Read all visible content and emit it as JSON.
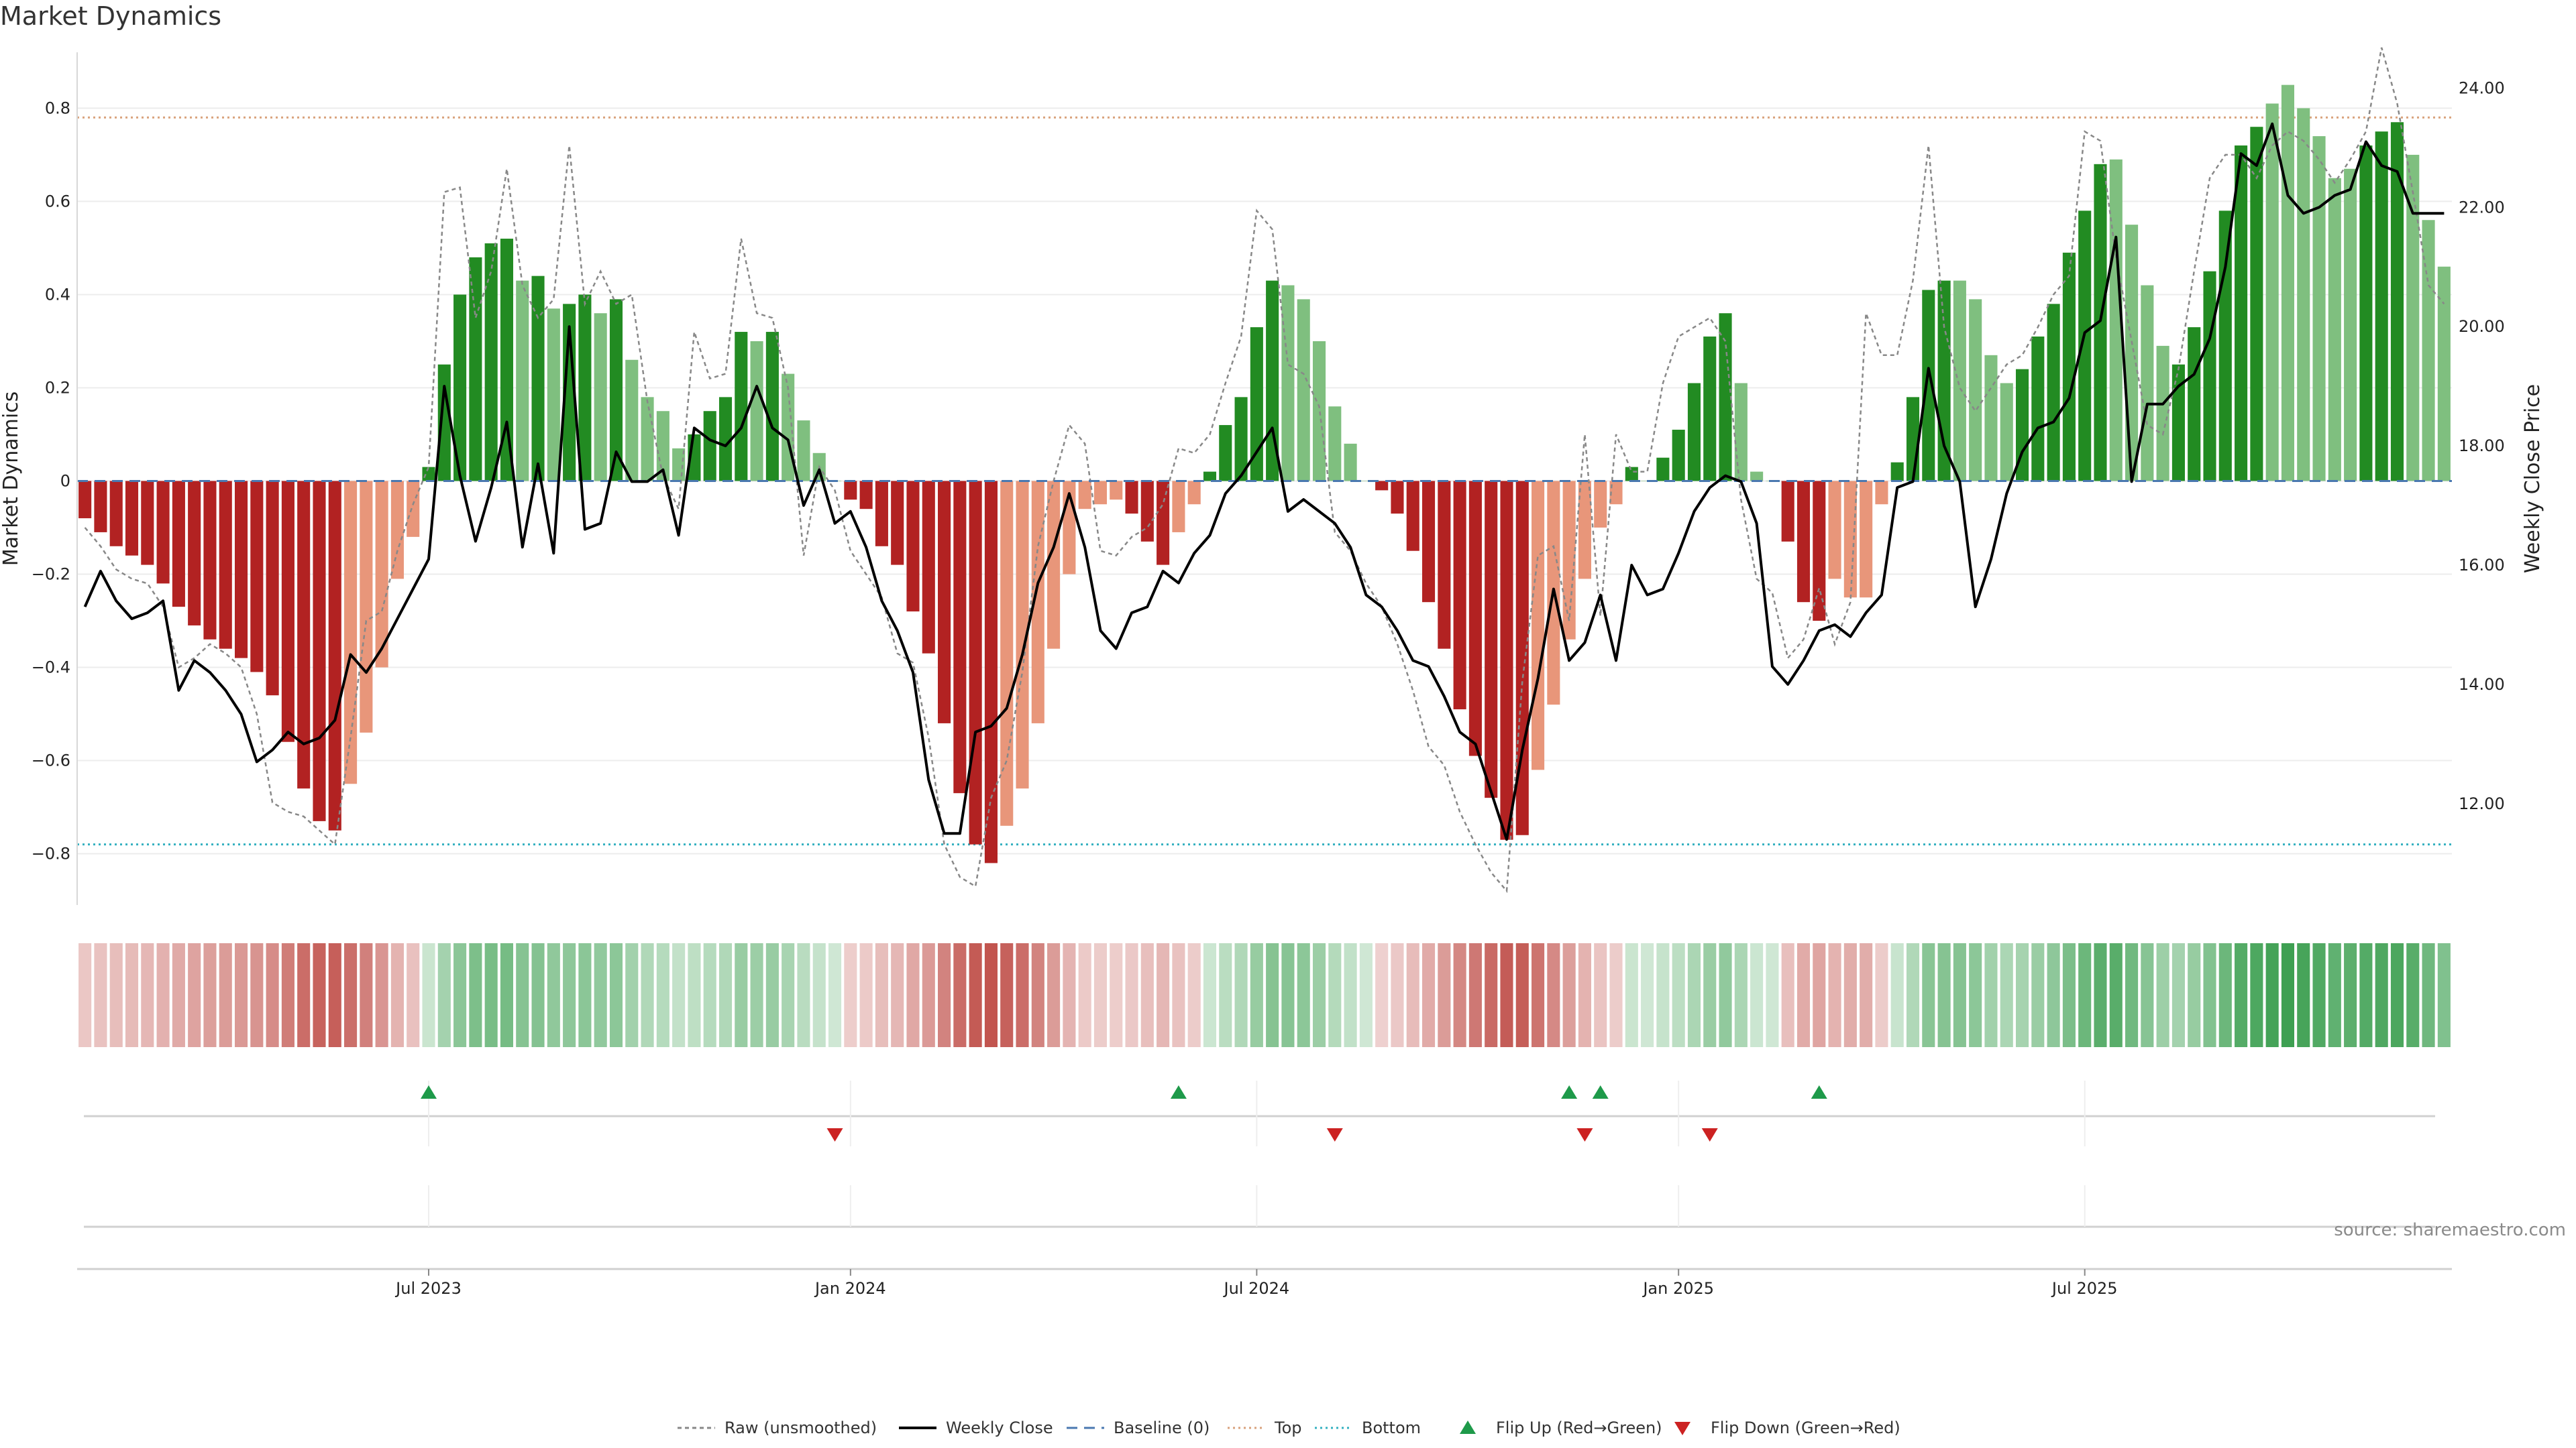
{
  "title": "Market Dynamics",
  "source": "source: sharemaestro.com",
  "colors": {
    "strong_green": "#228b22",
    "weak_green": "#7fbf7f",
    "strong_red": "#b22222",
    "weak_red": "#e8967a",
    "price_line": "#000000",
    "raw_line": "#888888",
    "baseline": "#4a78b0",
    "top": "#d9a27c",
    "bottom": "#33b0c0",
    "flip_up": "#1e9a4a",
    "flip_down": "#cc2222"
  },
  "chart_data": {
    "type": "bar",
    "title": "Market Dynamics",
    "ylabel_left": "Market Dynamics",
    "ylabel_right": "Weekly Close Price",
    "ylim_left": [
      -0.91,
      0.92
    ],
    "ylim_right": [
      10.3,
      24.6
    ],
    "yticks_left": [
      "0.8",
      "0.6",
      "0.4",
      "0.2",
      "0",
      "−0.2",
      "−0.4",
      "−0.6",
      "−0.8"
    ],
    "yticks_left_values": [
      0.8,
      0.6,
      0.4,
      0.2,
      0,
      -0.2,
      -0.4,
      -0.6,
      -0.8
    ],
    "yticks_right": [
      "24.00",
      "22.00",
      "20.00",
      "18.00",
      "16.00",
      "14.00",
      "12.00"
    ],
    "yticks_right_values": [
      24,
      22,
      20,
      18,
      16,
      14,
      12
    ],
    "x_tick_labels": [
      "Jul 2023",
      "Jan 2024",
      "Jul 2024",
      "Jan 2025",
      "Jul 2025"
    ],
    "x_tick_week_index": [
      22,
      49,
      75,
      102,
      128
    ],
    "top_level": 0.78,
    "bottom_level": -0.78,
    "baseline": 0,
    "legend_position": "bottom-center",
    "legend": [
      "Raw (unsmoothed)",
      "Weekly Close",
      "Baseline (0)",
      "Top",
      "Bottom",
      "Flip Up (Red→Green)",
      "Flip Down (Green→Red)"
    ],
    "dynamics": [
      -0.08,
      -0.11,
      -0.14,
      -0.16,
      -0.18,
      -0.22,
      -0.27,
      -0.31,
      -0.34,
      -0.36,
      -0.38,
      -0.41,
      -0.46,
      -0.56,
      -0.66,
      -0.73,
      -0.75,
      -0.65,
      -0.54,
      -0.4,
      -0.21,
      -0.12,
      0.03,
      0.25,
      0.4,
      0.48,
      0.51,
      0.52,
      0.43,
      0.44,
      0.37,
      0.38,
      0.4,
      0.36,
      0.39,
      0.26,
      0.18,
      0.15,
      0.07,
      0.1,
      0.15,
      0.18,
      0.32,
      0.3,
      0.32,
      0.23,
      0.13,
      0.06,
      0.0,
      -0.04,
      -0.06,
      -0.14,
      -0.18,
      -0.28,
      -0.37,
      -0.52,
      -0.67,
      -0.78,
      -0.82,
      -0.74,
      -0.66,
      -0.52,
      -0.36,
      -0.2,
      -0.06,
      -0.05,
      -0.04,
      -0.07,
      -0.13,
      -0.18,
      -0.11,
      -0.05,
      0.02,
      0.12,
      0.18,
      0.33,
      0.43,
      0.42,
      0.39,
      0.3,
      0.16,
      0.08,
      0.0,
      -0.02,
      -0.07,
      -0.15,
      -0.26,
      -0.36,
      -0.49,
      -0.59,
      -0.68,
      -0.77,
      -0.76,
      -0.62,
      -0.48,
      -0.34,
      -0.21,
      -0.1,
      -0.05,
      0.03,
      0.0,
      0.05,
      0.11,
      0.21,
      0.31,
      0.36,
      0.21,
      0.02,
      0.0,
      -0.13,
      -0.26,
      -0.3,
      -0.21,
      -0.25,
      -0.25,
      -0.05,
      0.04,
      0.18,
      0.41,
      0.43,
      0.43,
      0.39,
      0.27,
      0.21,
      0.24,
      0.31,
      0.38,
      0.49,
      0.58,
      0.68,
      0.69,
      0.55,
      0.42,
      0.29,
      0.25,
      0.33,
      0.45,
      0.58,
      0.72,
      0.76,
      0.81,
      0.85,
      0.8,
      0.74,
      0.65,
      0.67,
      0.72,
      0.75,
      0.77,
      0.7,
      0.56,
      0.46
    ],
    "bar_strength": [
      "s",
      "s",
      "s",
      "s",
      "s",
      "s",
      "s",
      "s",
      "s",
      "s",
      "s",
      "s",
      "s",
      "s",
      "s",
      "s",
      "s",
      "w",
      "w",
      "w",
      "w",
      "w",
      "s",
      "s",
      "s",
      "s",
      "s",
      "s",
      "w",
      "s",
      "w",
      "s",
      "s",
      "w",
      "s",
      "w",
      "w",
      "w",
      "w",
      "s",
      "s",
      "s",
      "s",
      "w",
      "s",
      "w",
      "w",
      "w",
      "w",
      "s",
      "s",
      "s",
      "s",
      "s",
      "s",
      "s",
      "s",
      "s",
      "s",
      "w",
      "w",
      "w",
      "w",
      "w",
      "w",
      "w",
      "w",
      "s",
      "s",
      "s",
      "w",
      "w",
      "s",
      "s",
      "s",
      "s",
      "s",
      "w",
      "w",
      "w",
      "w",
      "w",
      "w",
      "s",
      "s",
      "s",
      "s",
      "s",
      "s",
      "s",
      "s",
      "s",
      "s",
      "w",
      "w",
      "w",
      "w",
      "w",
      "w",
      "s",
      "w",
      "s",
      "s",
      "s",
      "s",
      "s",
      "w",
      "w",
      "w",
      "s",
      "s",
      "s",
      "w",
      "w",
      "w",
      "w",
      "s",
      "s",
      "s",
      "s",
      "w",
      "w",
      "w",
      "w",
      "s",
      "s",
      "s",
      "s",
      "s",
      "s",
      "w",
      "w",
      "w",
      "w",
      "s",
      "s",
      "s",
      "s",
      "s",
      "s",
      "w",
      "w",
      "w",
      "w",
      "w",
      "w",
      "s",
      "s",
      "s",
      "w",
      "w",
      "w"
    ],
    "weekly_close": [
      15.3,
      15.9,
      15.4,
      15.1,
      15.2,
      15.4,
      13.9,
      14.4,
      14.2,
      13.9,
      13.5,
      12.7,
      12.9,
      13.2,
      13.0,
      13.1,
      13.4,
      14.5,
      14.2,
      14.6,
      15.1,
      15.6,
      16.1,
      19.0,
      17.5,
      16.4,
      17.3,
      18.4,
      16.3,
      17.7,
      16.2,
      20.0,
      16.6,
      16.7,
      17.9,
      17.4,
      17.4,
      17.6,
      16.5,
      18.3,
      18.1,
      18.0,
      18.3,
      19.0,
      18.3,
      18.1,
      17.0,
      17.6,
      16.7,
      16.9,
      16.3,
      15.4,
      14.9,
      14.2,
      12.4,
      11.5,
      11.5,
      13.2,
      13.3,
      13.6,
      14.5,
      15.7,
      16.3,
      17.2,
      16.3,
      14.9,
      14.6,
      15.2,
      15.3,
      15.9,
      15.7,
      16.2,
      16.5,
      17.2,
      17.5,
      17.9,
      18.3,
      16.9,
      17.1,
      16.9,
      16.7,
      16.3,
      15.5,
      15.3,
      14.9,
      14.4,
      14.3,
      13.8,
      13.2,
      13.0,
      12.2,
      11.4,
      12.9,
      14.1,
      15.6,
      14.4,
      14.7,
      15.5,
      14.4,
      16.0,
      15.5,
      15.6,
      16.2,
      16.9,
      17.3,
      17.5,
      17.4,
      16.7,
      14.3,
      14.0,
      14.4,
      14.9,
      15.0,
      14.8,
      15.2,
      15.5,
      17.3,
      17.4,
      19.3,
      18.0,
      17.4,
      15.3,
      16.1,
      17.2,
      17.9,
      18.3,
      18.4,
      18.8,
      19.9,
      20.1,
      21.5,
      17.4,
      18.7,
      18.7,
      19.0,
      19.2,
      19.8,
      21.0,
      22.9,
      22.7,
      23.4,
      22.2,
      21.9,
      22.0,
      22.2,
      22.3,
      23.1,
      22.7,
      22.6,
      21.9,
      21.9,
      21.9
    ],
    "raw": [
      -0.1,
      -0.14,
      -0.19,
      -0.21,
      -0.22,
      -0.27,
      -0.4,
      -0.38,
      -0.35,
      -0.37,
      -0.4,
      -0.5,
      -0.69,
      -0.71,
      -0.72,
      -0.75,
      -0.78,
      -0.55,
      -0.3,
      -0.28,
      -0.15,
      -0.05,
      0.03,
      0.62,
      0.63,
      0.35,
      0.45,
      0.67,
      0.42,
      0.35,
      0.39,
      0.72,
      0.38,
      0.45,
      0.38,
      0.4,
      0.17,
      0.01,
      -0.06,
      0.32,
      0.22,
      0.23,
      0.52,
      0.36,
      0.35,
      0.2,
      -0.16,
      0.03,
      -0.02,
      -0.15,
      -0.2,
      -0.25,
      -0.37,
      -0.39,
      -0.55,
      -0.78,
      -0.85,
      -0.87,
      -0.68,
      -0.6,
      -0.41,
      -0.14,
      0.0,
      0.12,
      0.08,
      -0.15,
      -0.16,
      -0.12,
      -0.1,
      -0.05,
      0.07,
      0.06,
      0.1,
      0.21,
      0.31,
      0.58,
      0.54,
      0.25,
      0.23,
      0.16,
      -0.11,
      -0.15,
      -0.22,
      -0.27,
      -0.35,
      -0.45,
      -0.57,
      -0.61,
      -0.71,
      -0.78,
      -0.84,
      -0.88,
      -0.43,
      -0.16,
      -0.14,
      -0.3,
      0.1,
      -0.29,
      0.1,
      0.02,
      0.02,
      0.21,
      0.31,
      0.33,
      0.35,
      0.3,
      -0.04,
      -0.21,
      -0.24,
      -0.38,
      -0.34,
      -0.23,
      -0.35,
      -0.26,
      0.36,
      0.27,
      0.27,
      0.43,
      0.72,
      0.33,
      0.2,
      0.15,
      0.2,
      0.25,
      0.27,
      0.33,
      0.4,
      0.44,
      0.75,
      0.73,
      0.48,
      0.3,
      0.12,
      0.1,
      0.24,
      0.45,
      0.65,
      0.7,
      0.7,
      0.65,
      0.72,
      0.75,
      0.73,
      0.69,
      0.64,
      0.69,
      0.75,
      0.93,
      0.81,
      0.62,
      0.42,
      0.38
    ],
    "flip_up_weeks": [
      22,
      70,
      95,
      97,
      111
    ],
    "flip_down_weeks": [
      48,
      80,
      96,
      104
    ]
  }
}
